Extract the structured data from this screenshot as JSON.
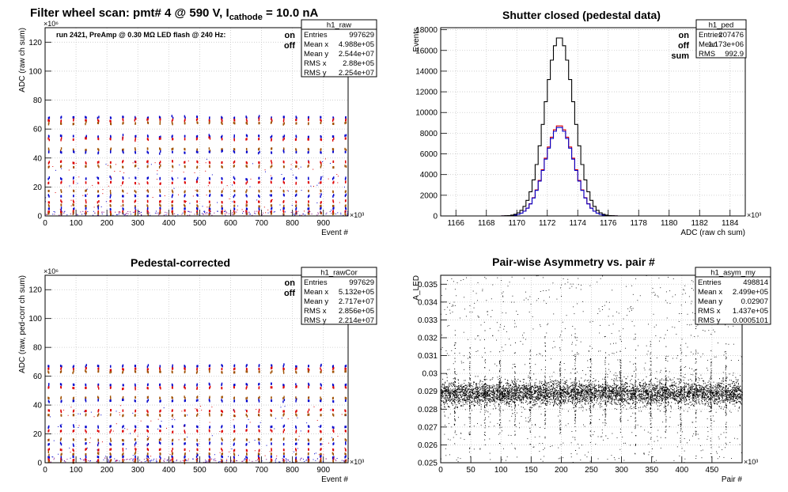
{
  "colors": {
    "on": "#0000cc",
    "off": "#dd0000",
    "sum": "#000000",
    "grid": "#c8c8c8"
  },
  "chart_data": [
    {
      "type": "scatter",
      "id": "raw",
      "title": {
        "prefix": "Filter wheel scan: pmt#   4 @   590 V, I",
        "sub": "cathode",
        "suffix": "   = 10.0 nA"
      },
      "xlabel": "Event #",
      "ylabel": "ADC (raw ch sum)",
      "xexp": "×10³",
      "yexp": "×10⁶",
      "xlim": [
        0,
        980
      ],
      "ylim": [
        0,
        130
      ],
      "xticks": [
        "0",
        "100",
        "200",
        "300",
        "400",
        "500",
        "600",
        "700",
        "800",
        "900"
      ],
      "yticks": [
        "0",
        "20",
        "40",
        "60",
        "80",
        "100",
        "120"
      ],
      "annotation": "run 2421, PreAmp @ 0.30 MΩ  LED flash @  240 Hz:",
      "legend": [
        "on",
        "off"
      ],
      "stats": {
        "name": "h1_raw",
        "rows": [
          [
            "Entries",
            "997629"
          ],
          [
            "Mean x",
            "4.988e+05"
          ],
          [
            "Mean y",
            "2.544e+07"
          ],
          [
            "RMS x",
            "2.88e+05"
          ],
          [
            "RMS y",
            "2.254e+07"
          ]
        ]
      },
      "levels": [
        68,
        66,
        64,
        55,
        53,
        46,
        44,
        37,
        34,
        26,
        23,
        17,
        14,
        10,
        7,
        5,
        3,
        1.5
      ],
      "period": 40
    },
    {
      "type": "bar",
      "id": "ped",
      "title": "Shutter closed (pedestal data)",
      "xlabel": "ADC (raw ch sum)",
      "ylabel": "Events",
      "xexp": "×10³",
      "xlim": [
        1165,
        1185
      ],
      "ylim": [
        0,
        18200
      ],
      "xticks": [
        "1166",
        "1168",
        "1170",
        "1172",
        "1174",
        "1176",
        "1178",
        "1180",
        "1182",
        "1184"
      ],
      "yticks": [
        "0",
        "2000",
        "4000",
        "6000",
        "8000",
        "10000",
        "12000",
        "14000",
        "16000",
        "18000"
      ],
      "legend": [
        "on",
        "off",
        "sum"
      ],
      "stats": {
        "name": "h1_ped",
        "rows": [
          [
            "Entries",
            "207476"
          ],
          [
            "Mean",
            "1.173e+06"
          ],
          [
            "RMS",
            "992.9"
          ]
        ]
      },
      "mean": 1172.8,
      "sigma": 0.95,
      "peak_sum": 17300,
      "peak_on": 8600,
      "peak_off": 8750,
      "binwidth": 0.2
    },
    {
      "type": "scatter",
      "id": "rawCor",
      "title": "Pedestal-corrected",
      "xlabel": "Event #",
      "ylabel": "ADC (raw, ped-corr ch sum)",
      "xexp": "×10³",
      "yexp": "×10⁶",
      "xlim": [
        0,
        980
      ],
      "ylim": [
        0,
        130
      ],
      "xticks": [
        "0",
        "100",
        "200",
        "300",
        "400",
        "500",
        "600",
        "700",
        "800",
        "900"
      ],
      "yticks": [
        "0",
        "20",
        "40",
        "60",
        "80",
        "100",
        "120"
      ],
      "legend": [
        "on",
        "off"
      ],
      "stats": {
        "name": "h1_rawCor",
        "rows": [
          [
            "Entries",
            "997629"
          ],
          [
            "Mean x",
            "5.132e+05"
          ],
          [
            "Mean y",
            "2.717e+07"
          ],
          [
            "RMS x",
            "2.856e+05"
          ],
          [
            "RMS y",
            "2.214e+07"
          ]
        ]
      },
      "levels": [
        67,
        65,
        63,
        54,
        52,
        45,
        43,
        36,
        33,
        25,
        22,
        16,
        13,
        9,
        6,
        4,
        2,
        0.8
      ],
      "period": 40
    },
    {
      "type": "scatter",
      "id": "asym",
      "title": "Pair-wise Asymmetry vs. pair #",
      "xlabel": "Pair #",
      "ylabel": "A_LED",
      "xexp": "×10³",
      "xlim": [
        0,
        500
      ],
      "ylim": [
        0.025,
        0.0355
      ],
      "xticks": [
        "0",
        "50",
        "100",
        "150",
        "200",
        "250",
        "300",
        "350",
        "400",
        "450"
      ],
      "yticks": [
        "0.025",
        "0.026",
        "0.027",
        "0.028",
        "0.029",
        "0.03",
        "0.031",
        "0.032",
        "0.033",
        "0.034",
        "0.035"
      ],
      "stats": {
        "name": "h1_asym_my",
        "rows": [
          [
            "Entries",
            "498814"
          ],
          [
            "Mean x",
            "2.499e+05"
          ],
          [
            "Mean y",
            "0.02907"
          ],
          [
            "RMS x",
            "1.437e+05"
          ],
          [
            "RMS y",
            "0.0005101"
          ]
        ]
      },
      "center": 0.0289,
      "spread": 0.0006,
      "period": 25
    }
  ]
}
